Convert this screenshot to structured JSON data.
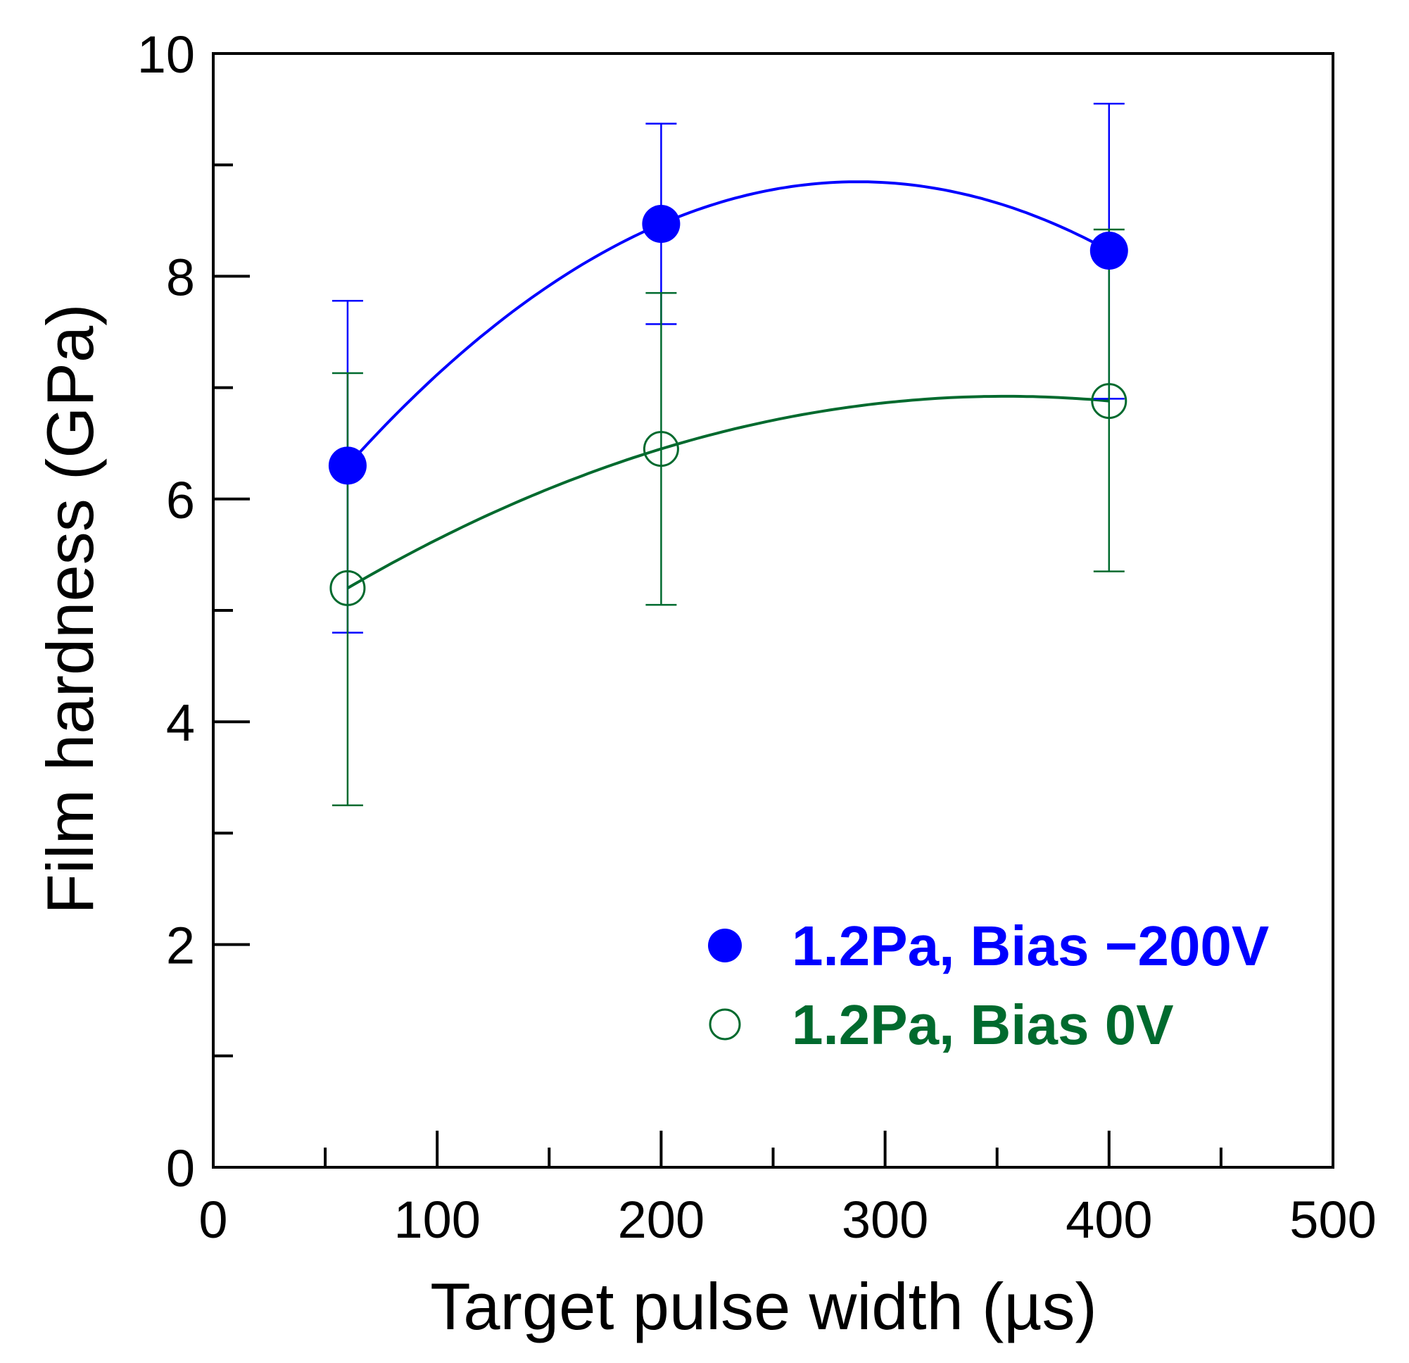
{
  "chart_data": {
    "type": "scatter",
    "title": "",
    "xlabel": "Target pulse width (µs)",
    "ylabel": "Film hardness (GPa)",
    "xlim": [
      0,
      500
    ],
    "ylim": [
      0,
      10
    ],
    "x_ticks": [
      0,
      100,
      200,
      300,
      400,
      500
    ],
    "x_tick_labels": [
      "0",
      "100",
      "200",
      "300",
      "400",
      "500"
    ],
    "y_ticks": [
      0,
      2,
      4,
      6,
      8,
      10
    ],
    "y_tick_labels": [
      "0",
      "2",
      "4",
      "6",
      "8",
      "10"
    ],
    "x_minor_step": 50,
    "y_minor_step": 1,
    "grid": false,
    "legend_position": "bottom-right",
    "series": [
      {
        "name": "1.2Pa, Bias −200V",
        "color": "#0000ff",
        "marker": "filled-circle",
        "x": [
          60,
          200,
          400
        ],
        "y": [
          6.3,
          8.47,
          8.23
        ],
        "err_low": [
          4.8,
          7.57,
          6.9
        ],
        "err_high": [
          7.78,
          9.37,
          9.55
        ],
        "fit_curve": true
      },
      {
        "name": "1.2Pa, Bias 0V",
        "color": "#006a2e",
        "marker": "open-circle",
        "x": [
          60,
          200,
          400
        ],
        "y": [
          5.2,
          6.45,
          6.88
        ],
        "err_low": [
          3.25,
          5.05,
          5.35
        ],
        "err_high": [
          7.13,
          7.85,
          8.42
        ],
        "fit_curve": true
      }
    ]
  }
}
